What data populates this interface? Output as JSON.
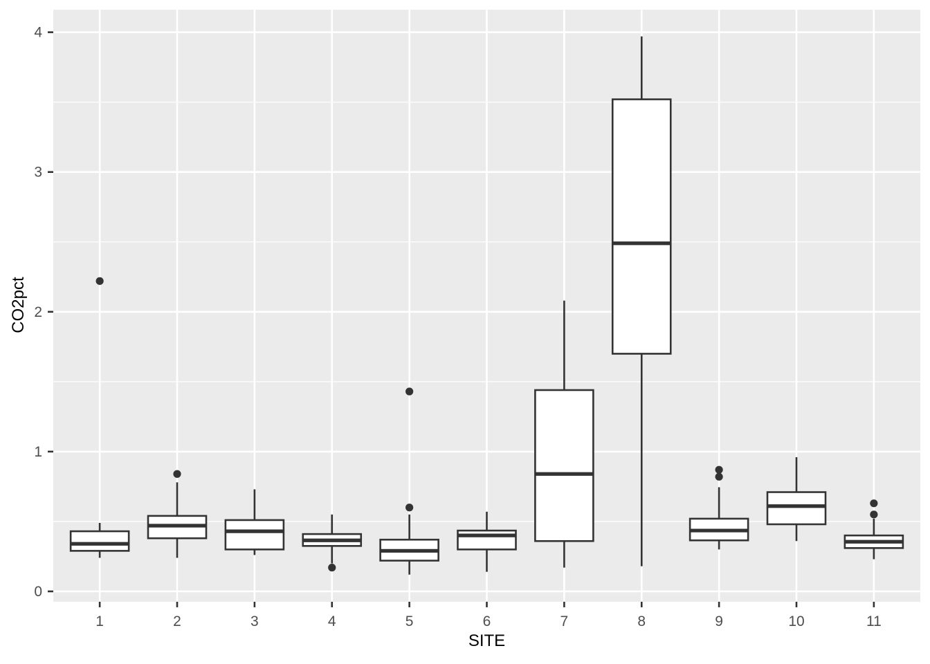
{
  "chart_data": {
    "type": "boxplot",
    "title": "",
    "xlabel": "SITE",
    "ylabel": "CO2pct",
    "categories": [
      "1",
      "2",
      "3",
      "4",
      "5",
      "6",
      "7",
      "8",
      "9",
      "10",
      "11"
    ],
    "y_ticks": [
      0,
      1,
      2,
      3,
      4
    ],
    "y_minor_ticks": [
      0.5,
      1.5,
      2.5,
      3.5
    ],
    "ylim": [
      -0.07,
      4.16
    ],
    "grid": {
      "major": true,
      "minor": true,
      "vertical_at_categories": true
    },
    "legend_position": "none",
    "boxes": [
      {
        "site": "1",
        "whisker_low": 0.24,
        "q1": 0.29,
        "median": 0.34,
        "q3": 0.43,
        "whisker_high": 0.49,
        "outliers": [
          2.22
        ]
      },
      {
        "site": "2",
        "whisker_low": 0.24,
        "q1": 0.38,
        "median": 0.47,
        "q3": 0.54,
        "whisker_high": 0.78,
        "outliers": [
          0.84
        ]
      },
      {
        "site": "3",
        "whisker_low": 0.26,
        "q1": 0.3,
        "median": 0.43,
        "q3": 0.51,
        "whisker_high": 0.73,
        "outliers": []
      },
      {
        "site": "4",
        "whisker_low": 0.2,
        "q1": 0.325,
        "median": 0.365,
        "q3": 0.41,
        "whisker_high": 0.55,
        "outliers": [
          0.17
        ]
      },
      {
        "site": "5",
        "whisker_low": 0.12,
        "q1": 0.22,
        "median": 0.29,
        "q3": 0.37,
        "whisker_high": 0.55,
        "outliers": [
          0.6,
          1.43
        ]
      },
      {
        "site": "6",
        "whisker_low": 0.14,
        "q1": 0.3,
        "median": 0.4,
        "q3": 0.435,
        "whisker_high": 0.57,
        "outliers": []
      },
      {
        "site": "7",
        "whisker_low": 0.17,
        "q1": 0.36,
        "median": 0.84,
        "q3": 1.44,
        "whisker_high": 2.08,
        "outliers": []
      },
      {
        "site": "8",
        "whisker_low": 0.18,
        "q1": 1.7,
        "median": 2.49,
        "q3": 3.52,
        "whisker_high": 3.97,
        "outliers": []
      },
      {
        "site": "9",
        "whisker_low": 0.3,
        "q1": 0.365,
        "median": 0.435,
        "q3": 0.52,
        "whisker_high": 0.745,
        "outliers": [
          0.82,
          0.87
        ]
      },
      {
        "site": "10",
        "whisker_low": 0.36,
        "q1": 0.48,
        "median": 0.61,
        "q3": 0.71,
        "whisker_high": 0.96,
        "outliers": []
      },
      {
        "site": "11",
        "whisker_low": 0.23,
        "q1": 0.31,
        "median": 0.355,
        "q3": 0.4,
        "whisker_high": 0.52,
        "outliers": [
          0.55,
          0.63
        ]
      }
    ]
  },
  "style": {
    "panel_background": "#EBEBEB",
    "grid_color": "#FFFFFF",
    "box_stroke": "#333333",
    "box_fill": "#FFFFFF",
    "outlier_fill": "#333333",
    "tick_label_color": "#4D4D4D",
    "tick_mark_color": "#333333",
    "axis_title_color": "#000000"
  }
}
